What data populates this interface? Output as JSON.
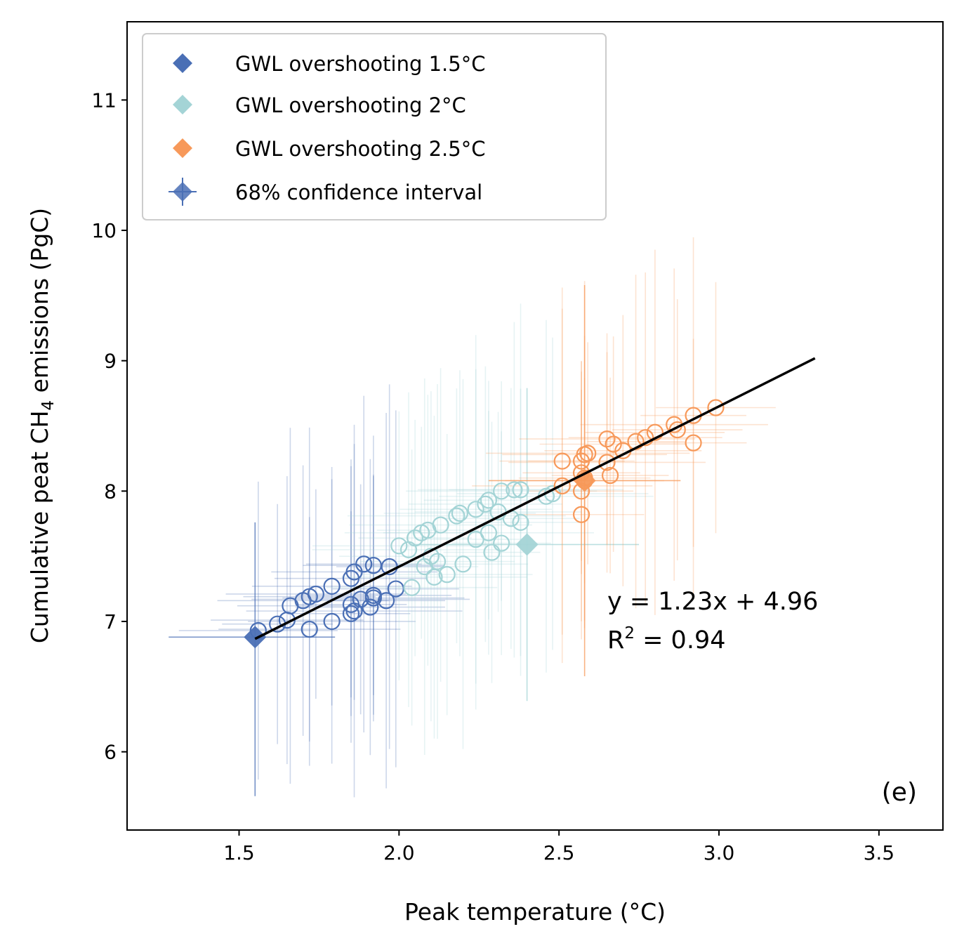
{
  "chart_data": {
    "type": "scatter",
    "xlabel": "Peak temperature (°C)",
    "ylabel_parts": {
      "before": "Cumulative peat CH",
      "sub": "4",
      "after": " emissions (PgC)"
    },
    "xlim": [
      1.15,
      3.7
    ],
    "ylim": [
      5.4,
      11.6
    ],
    "xticks": [
      1.5,
      2.0,
      2.5,
      3.0,
      3.5
    ],
    "xtick_labels": [
      "1.5",
      "2.0",
      "2.5",
      "3.0",
      "3.5"
    ],
    "yticks": [
      6,
      7,
      8,
      9,
      10,
      11
    ],
    "ytick_labels": [
      "6",
      "7",
      "8",
      "9",
      "10",
      "11"
    ],
    "legend_position": "upper-left",
    "grid": false,
    "series": [
      {
        "name": "GWL overshooting 1.5°C",
        "color": "#4a6fb5",
        "mean": {
          "x": 1.55,
          "y": 6.88,
          "xerr": [
            0.27,
            0.25
          ],
          "yerr": [
            1.22,
            0.88
          ]
        },
        "points": [
          [
            1.56,
            6.93
          ],
          [
            1.62,
            6.98
          ],
          [
            1.65,
            7.01
          ],
          [
            1.66,
            7.12
          ],
          [
            1.7,
            7.16
          ],
          [
            1.72,
            7.19
          ],
          [
            1.74,
            7.21
          ],
          [
            1.79,
            7.27
          ],
          [
            1.72,
            6.94
          ],
          [
            1.79,
            7.0
          ],
          [
            1.85,
            7.06
          ],
          [
            1.86,
            7.08
          ],
          [
            1.85,
            7.13
          ],
          [
            1.88,
            7.17
          ],
          [
            1.91,
            7.11
          ],
          [
            1.92,
            7.18
          ],
          [
            1.96,
            7.16
          ],
          [
            1.85,
            7.33
          ],
          [
            1.86,
            7.38
          ],
          [
            1.89,
            7.44
          ],
          [
            1.92,
            7.43
          ],
          [
            1.97,
            7.42
          ],
          [
            1.99,
            7.25
          ],
          [
            1.92,
            7.2
          ]
        ]
      },
      {
        "name": "GWL overshooting 2°C",
        "color": "#a4d4d6",
        "mean": {
          "x": 2.4,
          "y": 7.59,
          "xerr": [
            0.35,
            0.35
          ],
          "yerr": [
            1.2,
            1.2
          ]
        },
        "points": [
          [
            2.0,
            7.58
          ],
          [
            2.03,
            7.55
          ],
          [
            2.05,
            7.64
          ],
          [
            2.07,
            7.68
          ],
          [
            2.09,
            7.7
          ],
          [
            2.13,
            7.74
          ],
          [
            2.18,
            7.81
          ],
          [
            2.19,
            7.83
          ],
          [
            2.24,
            7.86
          ],
          [
            2.27,
            7.9
          ],
          [
            2.28,
            7.93
          ],
          [
            2.32,
            8.0
          ],
          [
            2.36,
            8.01
          ],
          [
            2.38,
            8.01
          ],
          [
            2.46,
            7.96
          ],
          [
            2.48,
            7.98
          ],
          [
            2.31,
            7.84
          ],
          [
            2.35,
            7.79
          ],
          [
            2.38,
            7.76
          ],
          [
            2.1,
            7.5
          ],
          [
            2.2,
            7.44
          ],
          [
            2.29,
            7.53
          ],
          [
            2.04,
            7.26
          ],
          [
            2.08,
            7.42
          ],
          [
            2.12,
            7.46
          ],
          [
            2.15,
            7.36
          ],
          [
            2.24,
            7.63
          ],
          [
            2.28,
            7.68
          ],
          [
            2.32,
            7.6
          ],
          [
            2.11,
            7.34
          ]
        ]
      },
      {
        "name": "GWL overshooting 2.5°C",
        "color": "#f7995a",
        "mean": {
          "x": 2.58,
          "y": 8.08,
          "xerr": [
            0.3,
            0.3
          ],
          "yerr": [
            1.5,
            1.5
          ]
        },
        "points": [
          [
            2.51,
            8.04
          ],
          [
            2.51,
            8.23
          ],
          [
            2.57,
            8.14
          ],
          [
            2.57,
            8.23
          ],
          [
            2.58,
            8.28
          ],
          [
            2.59,
            8.29
          ],
          [
            2.58,
            8.08
          ],
          [
            2.58,
            8.1
          ],
          [
            2.57,
            8.0
          ],
          [
            2.57,
            7.82
          ],
          [
            2.65,
            8.22
          ],
          [
            2.66,
            8.12
          ],
          [
            2.65,
            8.4
          ],
          [
            2.67,
            8.36
          ],
          [
            2.7,
            8.31
          ],
          [
            2.74,
            8.38
          ],
          [
            2.77,
            8.41
          ],
          [
            2.8,
            8.45
          ],
          [
            2.86,
            8.51
          ],
          [
            2.87,
            8.47
          ],
          [
            2.92,
            8.58
          ],
          [
            2.92,
            8.37
          ],
          [
            2.99,
            8.64
          ]
        ]
      }
    ],
    "ci_legend_label": "68% confidence interval",
    "fit": {
      "slope": 1.23,
      "intercept": 4.96,
      "x_range": [
        1.55,
        3.3
      ]
    },
    "annotation_eq": "y = 1.23x + 4.96",
    "annotation_r2": {
      "before": "R",
      "sup": "2",
      "after": " = 0.94"
    },
    "panel_label": "(e)"
  }
}
